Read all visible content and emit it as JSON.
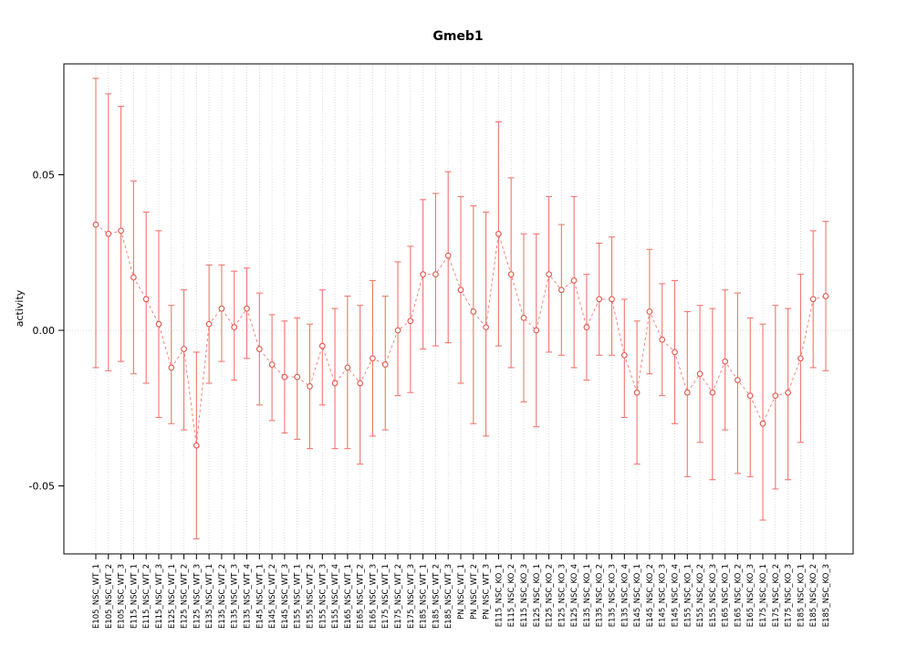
{
  "figure": {
    "background": "#ffffff"
  },
  "chart_data": {
    "type": "scatter",
    "title": "Gmeb1",
    "xlabel": "",
    "ylabel": "activity",
    "ylim": [
      -0.072,
      0.086
    ],
    "yticks": [
      0.05,
      0.0,
      -0.05
    ],
    "ytick_labels": [
      "0.05",
      "0.00",
      "-0.05"
    ],
    "grid": "light-dotted-vertical-per-category-and-horizontal-zero-line",
    "legend": "none",
    "marker": "open-circle-with-error-bars-connected-by-dashed-line",
    "colors": {
      "errorbar": "#f4766e",
      "line": "#f4766e",
      "point_stroke": "#e3554a",
      "point_fill": "#ffffff",
      "grid": "#cccccc",
      "axis": "#000000",
      "background": "#ffffff"
    },
    "categories": [
      "E105_NSC_WT_1",
      "E105_NSC_WT_2",
      "E105_NSC_WT_3",
      "E115_NSC_WT_1",
      "E115_NSC_WT_2",
      "E115_NSC_WT_3",
      "E125_NSC_WT_1",
      "E125_NSC_WT_2",
      "E125_NSC_WT_3",
      "E135_NSC_WT_1",
      "E135_NSC_WT_2",
      "E135_NSC_WT_3",
      "E135_NSC_WT_4",
      "E145_NSC_WT_1",
      "E145_NSC_WT_2",
      "E145_NSC_WT_3",
      "E155_NSC_WT_1",
      "E155_NSC_WT_2",
      "E155_NSC_WT_3",
      "E155_NSC_WT_4",
      "E165_NSC_WT_1",
      "E165_NSC_WT_2",
      "E165_NSC_WT_3",
      "E175_NSC_WT_1",
      "E175_NSC_WT_2",
      "E175_NSC_WT_3",
      "E185_NSC_WT_1",
      "E185_NSC_WT_2",
      "E185_NSC_WT_3",
      "PN_NSC_WT_1",
      "PN_NSC_WT_2",
      "PN_NSC_WT_3",
      "E115_NSC_KO_1",
      "E115_NSC_KO_2",
      "E115_NSC_KO_3",
      "E125_NSC_KO_1",
      "E125_NSC_KO_2",
      "E125_NSC_KO_3",
      "E125_NSC_KO_4",
      "E135_NSC_KO_1",
      "E135_NSC_KO_2",
      "E135_NSC_KO_3",
      "E135_NSC_KO_4",
      "E145_NSC_KO_1",
      "E145_NSC_KO_2",
      "E145_NSC_KO_3",
      "E145_NSC_KO_4",
      "E155_NSC_KO_1",
      "E155_NSC_KO_2",
      "E155_NSC_KO_3",
      "E165_NSC_KO_1",
      "E165_NSC_KO_2",
      "E165_NSC_KO_3",
      "E175_NSC_KO_1",
      "E175_NSC_KO_2",
      "E175_NSC_KO_3",
      "E185_NSC_KO_1",
      "E185_NSC_KO_2",
      "E185_NSC_KO_3"
    ],
    "series": [
      {
        "name": "activity",
        "values": [
          0.034,
          0.031,
          0.032,
          0.017,
          0.01,
          0.002,
          -0.012,
          -0.006,
          -0.037,
          0.002,
          0.007,
          0.001,
          0.007,
          -0.006,
          -0.011,
          -0.015,
          -0.015,
          -0.018,
          -0.005,
          -0.017,
          -0.012,
          -0.017,
          -0.009,
          -0.011,
          0.0,
          0.003,
          0.018,
          0.018,
          0.024,
          0.013,
          0.006,
          0.001,
          0.031,
          0.018,
          0.004,
          0.0,
          0.018,
          0.013,
          0.016,
          0.001,
          0.01,
          0.01,
          -0.008,
          -0.02,
          0.006,
          -0.003,
          -0.007,
          -0.02,
          -0.014,
          -0.02,
          -0.01,
          -0.016,
          -0.021,
          -0.03,
          -0.021,
          -0.02,
          -0.009,
          0.01,
          0.011
        ],
        "ci_low": [
          -0.012,
          -0.013,
          -0.01,
          -0.014,
          -0.017,
          -0.028,
          -0.03,
          -0.032,
          -0.067,
          -0.017,
          -0.01,
          -0.016,
          -0.009,
          -0.024,
          -0.029,
          -0.033,
          -0.035,
          -0.038,
          -0.024,
          -0.038,
          -0.038,
          -0.043,
          -0.034,
          -0.032,
          -0.021,
          -0.02,
          -0.006,
          -0.005,
          -0.004,
          -0.017,
          -0.03,
          -0.034,
          -0.005,
          -0.012,
          -0.023,
          -0.031,
          -0.007,
          -0.008,
          -0.012,
          -0.016,
          -0.008,
          -0.008,
          -0.028,
          -0.043,
          -0.014,
          -0.021,
          -0.03,
          -0.047,
          -0.036,
          -0.048,
          -0.032,
          -0.046,
          -0.047,
          -0.061,
          -0.051,
          -0.048,
          -0.036,
          -0.012,
          -0.013
        ],
        "ci_high": [
          0.081,
          0.076,
          0.072,
          0.048,
          0.038,
          0.032,
          0.008,
          0.013,
          -0.007,
          0.021,
          0.021,
          0.019,
          0.02,
          0.012,
          0.005,
          0.003,
          0.004,
          0.002,
          0.013,
          0.007,
          0.011,
          0.008,
          0.016,
          0.011,
          0.022,
          0.027,
          0.042,
          0.044,
          0.051,
          0.043,
          0.04,
          0.038,
          0.067,
          0.049,
          0.031,
          0.031,
          0.043,
          0.034,
          0.043,
          0.018,
          0.028,
          0.03,
          0.01,
          0.003,
          0.026,
          0.015,
          0.016,
          0.006,
          0.008,
          0.007,
          0.013,
          0.012,
          0.004,
          0.002,
          0.008,
          0.007,
          0.018,
          0.032,
          0.035
        ]
      }
    ]
  }
}
